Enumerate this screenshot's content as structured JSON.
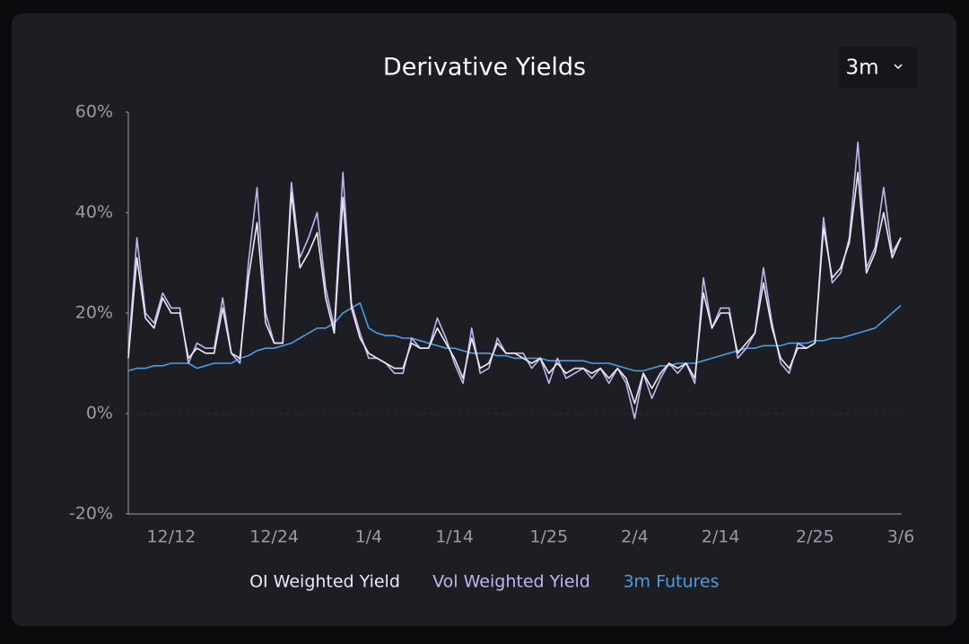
{
  "chart_data": {
    "type": "line",
    "title": "Derivative Yields",
    "range_selector": "3m",
    "categories": [
      null,
      null,
      null,
      null,
      null,
      "12/12",
      null,
      null,
      null,
      null,
      null,
      null,
      null,
      null,
      null,
      null,
      null,
      "12/24",
      null,
      null,
      null,
      null,
      null,
      null,
      null,
      null,
      null,
      null,
      "1/4",
      null,
      null,
      null,
      null,
      null,
      null,
      null,
      null,
      null,
      "1/14",
      null,
      null,
      null,
      null,
      null,
      null,
      null,
      null,
      null,
      null,
      "1/25",
      null,
      null,
      null,
      null,
      null,
      null,
      null,
      null,
      null,
      "2/4",
      null,
      null,
      null,
      null,
      null,
      null,
      null,
      null,
      null,
      "2/14",
      null,
      null,
      null,
      null,
      null,
      null,
      null,
      null,
      null,
      null,
      "2/25",
      null,
      null,
      null,
      null,
      null,
      null,
      null,
      null,
      null,
      "3/6"
    ],
    "series": [
      {
        "name": "OI Weighted Yield",
        "color": "#ebe9f5",
        "values": [
          11,
          31,
          19,
          17,
          23,
          20,
          20,
          11,
          13,
          12,
          12,
          21,
          12,
          11,
          27,
          38,
          18,
          14,
          14,
          44,
          29,
          32,
          36,
          23,
          16,
          43,
          21,
          15,
          12,
          11,
          10,
          9,
          9,
          14,
          13,
          13,
          17,
          14,
          11,
          7,
          15,
          9,
          10,
          14,
          12,
          12,
          11,
          10,
          11,
          8,
          10,
          8,
          9,
          9,
          8,
          9,
          7,
          9,
          7,
          2,
          8,
          5,
          8,
          10,
          9,
          10,
          7,
          24,
          17,
          20,
          20,
          12,
          14,
          16,
          26,
          17,
          11,
          9,
          13,
          13,
          14,
          37,
          27,
          29,
          34,
          48,
          28,
          32,
          40,
          31,
          35
        ]
      },
      {
        "name": "Vol Weighted Yield",
        "color": "#c6b2f0",
        "values": [
          12,
          35,
          20,
          18,
          24,
          21,
          21,
          10,
          14,
          13,
          13,
          23,
          12,
          10,
          30,
          45,
          20,
          14,
          14,
          46,
          31,
          35,
          40,
          25,
          17,
          48,
          22,
          16,
          11,
          11,
          10,
          8,
          8,
          15,
          13,
          13,
          19,
          15,
          10,
          6,
          17,
          8,
          9,
          15,
          12,
          12,
          12,
          9,
          11,
          6,
          11,
          7,
          8,
          9,
          7,
          9,
          6,
          9,
          6,
          -1,
          8,
          3,
          7,
          10,
          8,
          10,
          6,
          27,
          17,
          21,
          21,
          11,
          13,
          16,
          29,
          18,
          10,
          8,
          14,
          13,
          14,
          39,
          26,
          28,
          35,
          54,
          29,
          33,
          45,
          32,
          35
        ]
      },
      {
        "name": "3m Futures",
        "color": "#4b9de3",
        "values": [
          8.5,
          9,
          9,
          9.5,
          9.5,
          10,
          10,
          10,
          9,
          9.5,
          10,
          10,
          10,
          11,
          11.5,
          12.5,
          13,
          13,
          13.5,
          14,
          15,
          16,
          17,
          17,
          18,
          20,
          21,
          22,
          17,
          16,
          15.5,
          15.5,
          15,
          15,
          14.5,
          14,
          13.5,
          13,
          13,
          12.5,
          12,
          12,
          12,
          11.5,
          11.5,
          11,
          11,
          11,
          11,
          10.5,
          10.5,
          10.5,
          10.5,
          10.5,
          10,
          10,
          10,
          9.5,
          9,
          8.5,
          8.5,
          9,
          9.5,
          9.5,
          10,
          10,
          10,
          10.5,
          11,
          11.5,
          12,
          12.5,
          13,
          13,
          13.5,
          13.5,
          13.5,
          14,
          14,
          14,
          14.5,
          14.5,
          15,
          15,
          15.5,
          16,
          16.5,
          17,
          18.5,
          20,
          21.5
        ]
      }
    ],
    "ylim": [
      -20,
      60
    ],
    "yticks": [
      {
        "value": -20,
        "label": "-20%"
      },
      {
        "value": 0,
        "label": "0%"
      },
      {
        "value": 20,
        "label": "20%"
      },
      {
        "value": 40,
        "label": "40%"
      },
      {
        "value": 60,
        "label": "60%"
      }
    ]
  }
}
